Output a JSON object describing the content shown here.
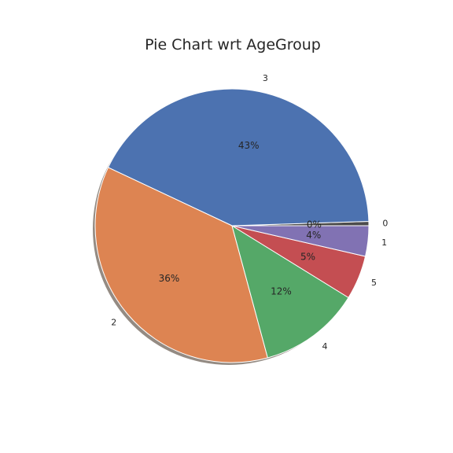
{
  "chart_data": {
    "type": "pie",
    "title": "Pie Chart wrt AgeGroup",
    "shadow": true,
    "start_angle_deg": 0,
    "direction": "counterclockwise",
    "slices": [
      {
        "label": "0",
        "percent_label": "0%",
        "value": 0.5,
        "color": "#4c4c4c"
      },
      {
        "label": "3",
        "percent_label": "43%",
        "value": 42.5,
        "color": "#4c72b0"
      },
      {
        "label": "2",
        "percent_label": "36%",
        "value": 36.2,
        "color": "#dd8452"
      },
      {
        "label": "4",
        "percent_label": "12%",
        "value": 12.0,
        "color": "#55a868"
      },
      {
        "label": "5",
        "percent_label": "5%",
        "value": 5.2,
        "color": "#c44e52"
      },
      {
        "label": "1",
        "percent_label": "4%",
        "value": 3.6,
        "color": "#8172b3"
      }
    ]
  }
}
